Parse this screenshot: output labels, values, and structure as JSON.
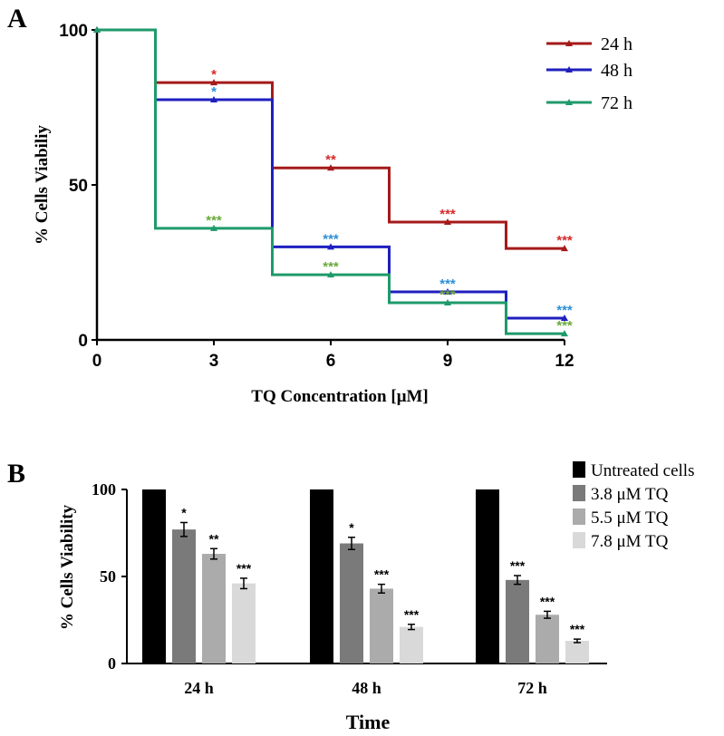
{
  "chart_data": [
    {
      "panel": "A",
      "type": "line",
      "step": true,
      "xlabel": "TQ Concentration [μM]",
      "ylabel": "% Cells Viabiliy",
      "xlim": [
        0,
        12
      ],
      "ylim": [
        0,
        100
      ],
      "x_ticks": [
        "0",
        "3",
        "6",
        "9",
        "12"
      ],
      "y_ticks": [
        "0",
        "50",
        "100"
      ],
      "grid": false,
      "legend_position": "top-right",
      "x": [
        0,
        3,
        6,
        9,
        12
      ],
      "series": [
        {
          "name": "24 h",
          "color": "#a51a1a",
          "star_color": "#d62b2b",
          "values": [
            100,
            83,
            55.5,
            38,
            29.5
          ],
          "significance": [
            "",
            "*",
            "**",
            "***",
            "***"
          ]
        },
        {
          "name": "48 h",
          "color": "#1f1fbf",
          "star_color": "#2e8fd6",
          "values": [
            100,
            77.5,
            30,
            15.5,
            7
          ],
          "significance": [
            "",
            "*",
            "***",
            "***",
            "***"
          ]
        },
        {
          "name": "72 h",
          "color": "#1f9a6b",
          "star_color": "#6aaa3a",
          "values": [
            100,
            36,
            21,
            12,
            2
          ],
          "significance": [
            "",
            "***",
            "***",
            "***",
            "***"
          ]
        }
      ]
    },
    {
      "panel": "B",
      "type": "bar",
      "xlabel": "Time",
      "ylabel": "% Cells Viability",
      "ylim": [
        0,
        100
      ],
      "y_ticks": [
        "0",
        "50",
        "100"
      ],
      "grid": false,
      "legend_position": "top-right",
      "categories": [
        "24 h",
        "48 h",
        "72 h"
      ],
      "series": [
        {
          "name": "Untreated cells",
          "color": "#000000",
          "values": [
            100,
            100,
            100
          ],
          "errors": [
            0,
            0,
            0
          ],
          "significance": [
            "",
            "",
            ""
          ]
        },
        {
          "name": "3.8 μM TQ",
          "color": "#7a7a7a",
          "values": [
            77,
            69,
            48
          ],
          "errors": [
            4,
            3.5,
            2.5
          ],
          "significance": [
            "*",
            "*",
            "***"
          ]
        },
        {
          "name": "5.5 μM TQ",
          "color": "#ababab",
          "values": [
            63,
            43,
            28
          ],
          "errors": [
            3,
            2.5,
            2
          ],
          "significance": [
            "**",
            "***",
            "***"
          ]
        },
        {
          "name": "7.8 μM TQ",
          "color": "#d9d9d9",
          "values": [
            46,
            21,
            13
          ],
          "errors": [
            3,
            1.5,
            1
          ],
          "significance": [
            "***",
            "***",
            "***"
          ]
        }
      ]
    }
  ]
}
